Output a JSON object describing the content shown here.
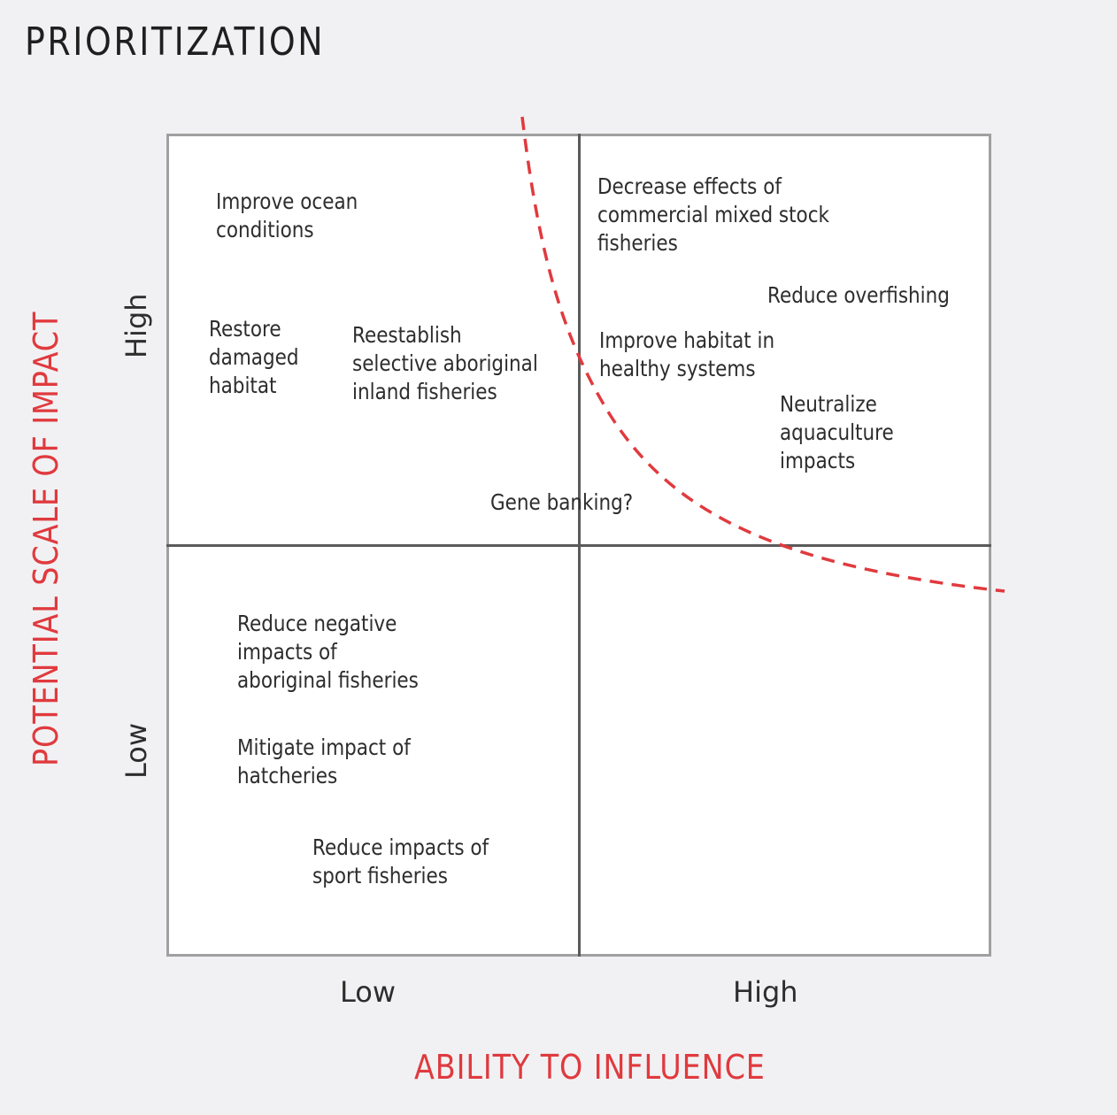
{
  "title": "PRIORITIZATION",
  "axes": {
    "x_label": "ABILITY TO INFLUENCE",
    "y_label": "POTENTIAL SCALE OF IMPACT",
    "x_ticks": [
      "Low",
      "High"
    ],
    "y_ticks": [
      "Low",
      "High"
    ],
    "label_color": "#e03a3e"
  },
  "items": {
    "improve_ocean": "Improve ocean\nconditions",
    "restore_habitat": "Restore\ndamaged\nhabitat",
    "reestablish": "Reestablish\nselective aboriginal\ninland fisheries",
    "gene_banking": "Gene banking?",
    "decrease_effects": "Decrease effects of\ncommercial mixed stock\nfisheries",
    "reduce_overfishing": "Reduce overfishing",
    "improve_habitat": "Improve habitat in\nhealthy systems",
    "neutralize": "Neutralize\naquaculture\nimpacts",
    "reduce_negative": "Reduce negative\nimpacts of\naboriginal fisheries",
    "mitigate": "Mitigate impact of\nhatcheries",
    "reduce_sport": "Reduce impacts of\nsport fisheries"
  },
  "curve": {
    "style": "dashed",
    "color": "#e03a3e"
  }
}
